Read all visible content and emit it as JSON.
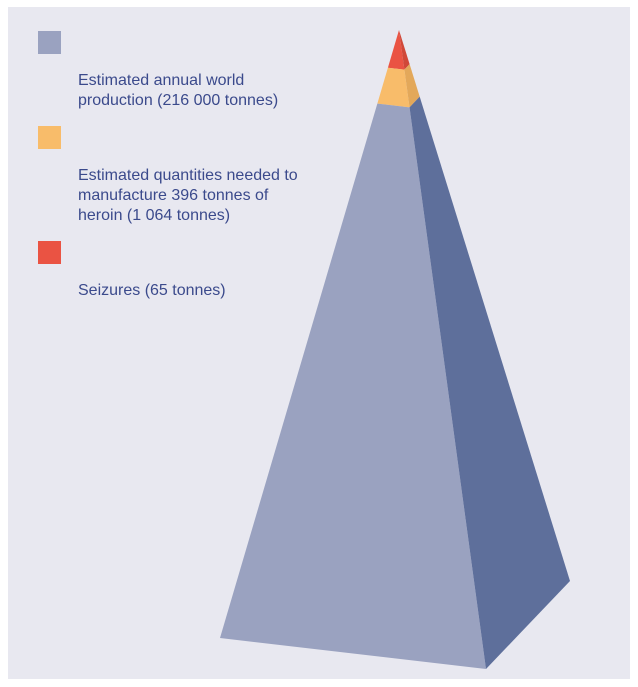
{
  "chart_data": {
    "type": "pyramid",
    "title": "",
    "series": [
      {
        "name": "Estimated annual world\nproduction (216 000 tonnes)",
        "values": [
          216000
        ],
        "color": "#9aa2c0",
        "side_color": "#5e6f9b"
      },
      {
        "name": "Estimated quantities needed to\nmanufacture 396 tonnes of\nheroin (1 064 tonnes)",
        "values": [
          1064
        ],
        "color": "#f8bc6a",
        "side_color": "#e3a85a"
      },
      {
        "name": "Seizures (65 tonnes)",
        "values": [
          65
        ],
        "color": "#ea5343",
        "side_color": "#d04839"
      }
    ],
    "unit": "tonnes",
    "legend_position": "top-left"
  }
}
